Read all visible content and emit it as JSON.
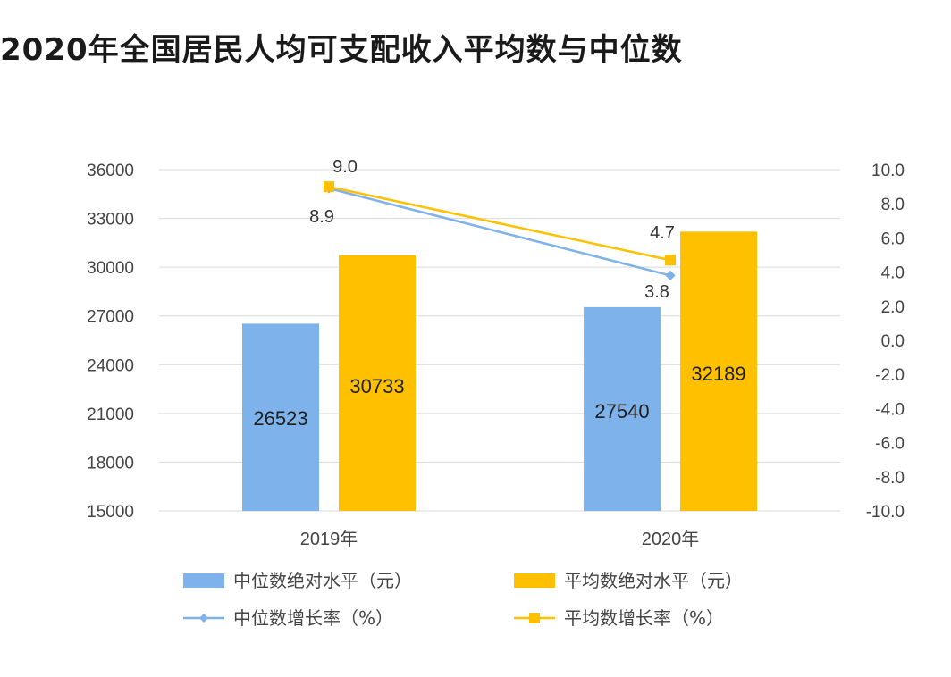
{
  "title": "2020年全国居民人均可支配收入平均数与中位数",
  "chart_data": {
    "type": "bar",
    "categories": [
      "2019年",
      "2020年"
    ],
    "series": [
      {
        "name": "中位数绝对水平（元）",
        "type": "bar",
        "axis": "left",
        "color": "#7eb2ea",
        "values": [
          26523,
          27540
        ],
        "labels": [
          "26523",
          "27540"
        ]
      },
      {
        "name": "平均数绝对水平（元）",
        "type": "bar",
        "axis": "left",
        "color": "#ffc000",
        "values": [
          30733,
          32189
        ],
        "labels": [
          "30733",
          "32189"
        ]
      },
      {
        "name": "中位数增长率（%）",
        "type": "line",
        "axis": "right",
        "color": "#7eb2ea",
        "values": [
          8.9,
          3.8
        ],
        "labels": [
          "8.9",
          "3.8"
        ]
      },
      {
        "name": "平均数增长率（%）",
        "type": "line",
        "axis": "right",
        "color": "#ffc000",
        "values": [
          9.0,
          4.7
        ],
        "labels": [
          "9.0",
          "4.7"
        ]
      }
    ],
    "y_left": {
      "range": [
        15000,
        36000
      ],
      "ticks": [
        "15000",
        "18000",
        "21000",
        "24000",
        "27000",
        "30000",
        "33000",
        "36000"
      ]
    },
    "y_right": {
      "range": [
        -10,
        10
      ],
      "ticks": [
        "-10.0",
        "-8.0",
        "-6.0",
        "-4.0",
        "-2.0",
        "0.0",
        "2.0",
        "4.0",
        "6.0",
        "8.0",
        "10.0"
      ]
    },
    "grid": true,
    "legend": "bottom"
  }
}
